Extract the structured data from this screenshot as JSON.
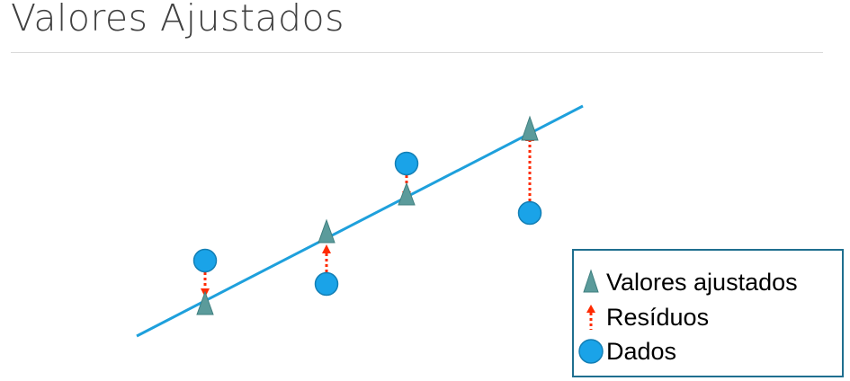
{
  "slide": {
    "title": "Valores Ajustados"
  },
  "legend": {
    "items": [
      {
        "label": "Valores ajustados",
        "symbol": "triangle-icon"
      },
      {
        "label": "Resíduos",
        "symbol": "dotted-arrow-icon"
      },
      {
        "label": "Dados",
        "symbol": "circle-icon"
      }
    ]
  },
  "colors": {
    "title": "#404040",
    "regression_line": "#1ea0dc",
    "fitted_triangle": "#5b9b9b",
    "residual_arrow": "#ff2a00",
    "data_circle": "#1aa3e8",
    "legend_border": "#1f6f8f"
  }
}
